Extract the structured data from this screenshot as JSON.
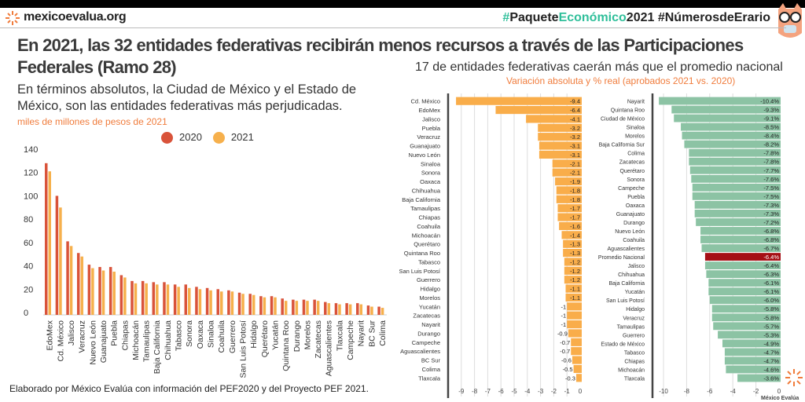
{
  "header": {
    "site": "mexicoevalua.org",
    "hashtag_parts": [
      "#",
      "Paquete",
      "Económico",
      "2021 #NúmerosdeErario"
    ]
  },
  "title": "En 2021, las 32 entidades federativas recibirán menos recursos a través de las Participaciones Federales (Ramo 28)",
  "subtitle": "En términos absolutos, la Ciudad de México y el Estado de México, son las entidades federativas más perjudicadas.",
  "unit": "miles de millones de pesos de 2021",
  "right_title": "17 de entidades federativas caerán más que el promedio nacional",
  "right_subtitle": "Variación absoluta y % real (aprobados 2021 vs. 2020)",
  "footer": "Elaborado por México Evalúa con información del PEF2020  y del Proyecto PEF 2021.",
  "logo_text": "México Evalúa",
  "colors": {
    "s2020": "#d9533a",
    "s2021": "#f6b04c",
    "abs": "#f9ad4a",
    "pct": "#8cc3a4",
    "highlight": "#a50f15",
    "accent": "#f07c3c"
  },
  "chart_data": [
    {
      "type": "bar",
      "ylim": [
        0,
        140
      ],
      "yticks": [
        0,
        20,
        40,
        60,
        80,
        100,
        120,
        140
      ],
      "grid": false,
      "legend": "top-center",
      "categories": [
        "EdoMex",
        "Cd. México",
        "Jalisco",
        "Veracruz",
        "Nuevo León",
        "Guanajuato",
        "Puebla",
        "Chiapas",
        "Michoacán",
        "Tamaulipas",
        "Baja California",
        "Chihuahua",
        "Tabasco",
        "Sonora",
        "Oaxaca",
        "Sinaloa",
        "Coahuila",
        "Guerrero",
        "San Luis Potosí",
        "Hidalgo",
        "Querétaro",
        "Yucatán",
        "Quintana Roo",
        "Durango",
        "Morelos",
        "Zacatecas",
        "Aguascalientes",
        "Tlaxcala",
        "Campeche",
        "Nayarit",
        "BC Sur",
        "Colima"
      ],
      "series": [
        {
          "name": "2020",
          "values": [
            128,
            100,
            61,
            51,
            41,
            39,
            39,
            32,
            27,
            27,
            26,
            26,
            24,
            24,
            22,
            21,
            20,
            19,
            17,
            16,
            14,
            14,
            12,
            11,
            11,
            11,
            9,
            8,
            8,
            8,
            6,
            5
          ]
        },
        {
          "name": "2021",
          "values": [
            121,
            90,
            57,
            48,
            38,
            36,
            35,
            30,
            25,
            25,
            24,
            24,
            22,
            21,
            20,
            19,
            18,
            18,
            16,
            15,
            13,
            13,
            10,
            10,
            10,
            10,
            8,
            7,
            7,
            7,
            5,
            4
          ]
        }
      ]
    },
    {
      "type": "bar",
      "orientation": "horizontal",
      "xlim": [
        -9.8,
        0.3
      ],
      "xticks": [
        -9,
        -8,
        -7,
        -6,
        -5,
        -4,
        -3,
        -2,
        -1,
        0
      ],
      "grid": true,
      "categories": [
        "Cd. México",
        "EdoMex",
        "Jalisco",
        "Puebla",
        "Veracruz",
        "Guanajuato",
        "Nuevo León",
        "Sinaloa",
        "Sonora",
        "Oaxaca",
        "Chihuahua",
        "Baja California",
        "Tamaulipas",
        "Chiapas",
        "Coahuila",
        "Michoacán",
        "Querétaro",
        "Quintana Roo",
        "Tabasco",
        "San Luis Potosí",
        "Guerrero",
        "Hidalgo",
        "Morelos",
        "Yucatán",
        "Zacatecas",
        "Nayarit",
        "Durango",
        "Campeche",
        "Aguascalientes",
        "BC Sur",
        "Colima",
        "Tlaxcala"
      ],
      "values": [
        -9.4,
        -6.4,
        -4.1,
        -3.2,
        -3.2,
        -3.1,
        -3.1,
        -2.1,
        -2.1,
        -1.9,
        -1.8,
        -1.8,
        -1.7,
        -1.7,
        -1.6,
        -1.4,
        -1.3,
        -1.3,
        -1.2,
        -1.2,
        -1.2,
        -1.1,
        -1.1,
        -1,
        -1,
        -1,
        -0.9,
        -0.7,
        -0.7,
        -0.6,
        -0.5,
        -0.3
      ],
      "labels": [
        "-9.4",
        "-6.4",
        "-4.1",
        "-3.2",
        "-3.2",
        "-3.1",
        "-3.1",
        "-2.1",
        "-2.1",
        "-1.9",
        "-1.8",
        "-1.8",
        "-1.7",
        "-1.7",
        "-1.6",
        "-1.4",
        "-1.3",
        "-1.3",
        "-1.2",
        "-1.2",
        "-1.2",
        "-1.1",
        "-1.1",
        "-1",
        "-1",
        "-1",
        "-0.9",
        "-0.7",
        "-0.7",
        "-0.6",
        "-0.5",
        "-0.3"
      ]
    },
    {
      "type": "bar",
      "orientation": "horizontal",
      "xlim": [
        -11,
        0.5
      ],
      "xticks": [
        -10,
        -8,
        -6,
        -4,
        -2,
        0
      ],
      "grid": true,
      "highlight": "Promedio Nacional",
      "categories": [
        "Nayarit",
        "Quintana Roo",
        "Ciudad de México",
        "Sinaloa",
        "Morelos",
        "Baja California Sur",
        "Colima",
        "Zacatecas",
        "Querétaro",
        "Sonora",
        "Campeche",
        "Puebla",
        "Oaxaca",
        "Guanajuato",
        "Durango",
        "Nuevo León",
        "Coahuila",
        "Aguascalientes",
        "Promedio Nacional",
        "Jalisco",
        "Chihuahua",
        "Baja California",
        "Yucatán",
        "San Luis Potosí",
        "Hidalgo",
        "Veracruz",
        "Tamaulipas",
        "Guerrero",
        "Estado de México",
        "Tabasco",
        "Chiapas",
        "Michoacán",
        "Tlaxcala"
      ],
      "values": [
        -10.4,
        -9.3,
        -9.1,
        -8.5,
        -8.4,
        -8.2,
        -7.8,
        -7.8,
        -7.7,
        -7.6,
        -7.5,
        -7.5,
        -7.3,
        -7.3,
        -7.2,
        -6.8,
        -6.8,
        -6.7,
        -6.4,
        -6.4,
        -6.3,
        -6.1,
        -6.1,
        -6.0,
        -5.8,
        -5.8,
        -5.7,
        -5.3,
        -4.9,
        -4.7,
        -4.7,
        -4.6,
        -3.6
      ],
      "labels": [
        "-10.4%",
        "-9.3%",
        "-9.1%",
        "-8.5%",
        "-8.4%",
        "-8.2%",
        "-7.8%",
        "-7.8%",
        "-7.7%",
        "-7.6%",
        "-7.5%",
        "-7.5%",
        "-7.3%",
        "-7.3%",
        "-7.2%",
        "-6.8%",
        "-6.8%",
        "-6.7%",
        "-6.4%",
        "-6.4%",
        "-6.3%",
        "-6.1%",
        "-6.1%",
        "-6.0%",
        "-5.8%",
        "-5.8%",
        "-5.7%",
        "-5.3%",
        "-4.9%",
        "-4.7%",
        "-4.7%",
        "-4.6%",
        "-3.6%"
      ]
    }
  ]
}
